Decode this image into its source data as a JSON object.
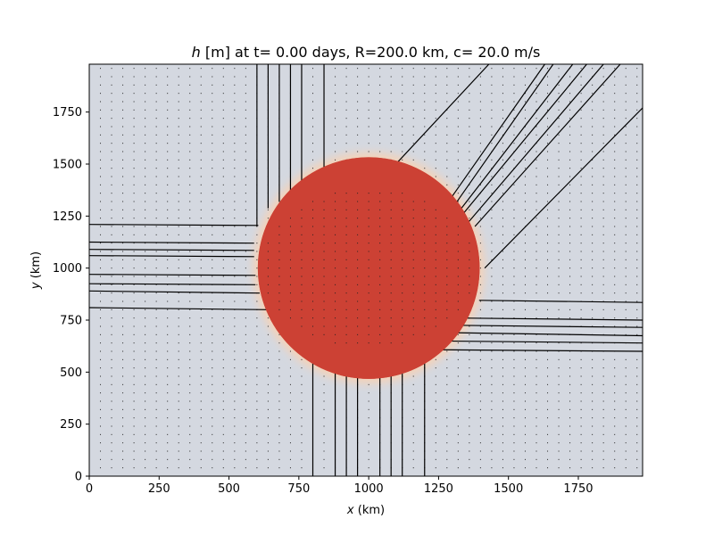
{
  "figure": {
    "title_var": "h",
    "title_rest": " [m] at t= 0.00 days, R=200.0 km, c= 20.0 m/s"
  },
  "chart_data": {
    "type": "heatmap",
    "xlabel_var": "x",
    "xlabel_unit": " (km)",
    "ylabel_var": "y",
    "ylabel_unit": " (km)",
    "xlim": [
      0,
      1980
    ],
    "ylim": [
      0,
      1980
    ],
    "x_ticks": [
      0,
      250,
      500,
      750,
      1000,
      1250,
      1500,
      1750
    ],
    "y_ticks": [
      0,
      250,
      500,
      750,
      1000,
      1250,
      1500,
      1750
    ],
    "grid": false,
    "legend": "none",
    "colors": {
      "background_field": "#d4d8e0",
      "anomaly_field": "#cc4134",
      "edge_glow": "#f6d2b6",
      "contours": "#000000",
      "dots": "#222222"
    },
    "field": {
      "background_value_label": "low",
      "anomaly": {
        "shape": "disk",
        "center": [
          1000,
          1000
        ],
        "radius_km": 400
      }
    },
    "dot_grid": {
      "spacing_km": 40,
      "start_km": 40
    },
    "contour_lines": {
      "vertical_top": [
        600,
        640,
        680,
        720,
        760,
        840
      ],
      "vertical_bottom": [
        800,
        880,
        920,
        960,
        1040,
        1080,
        1120,
        1200
      ],
      "horizontal_left": [
        [
          [
            0,
            1210
          ],
          [
            605,
            1205
          ]
        ],
        [
          [
            0,
            1125
          ],
          [
            590,
            1120
          ]
        ],
        [
          [
            0,
            1090
          ],
          [
            590,
            1085
          ]
        ],
        [
          [
            0,
            1060
          ],
          [
            590,
            1055
          ]
        ],
        [
          [
            0,
            970
          ],
          [
            595,
            965
          ]
        ],
        [
          [
            0,
            925
          ],
          [
            595,
            920
          ]
        ],
        [
          [
            0,
            890
          ],
          [
            610,
            880
          ]
        ],
        [
          [
            0,
            810
          ],
          [
            640,
            800
          ]
        ]
      ],
      "horizontal_right": [
        [
          [
            1395,
            845
          ],
          [
            1980,
            835
          ]
        ],
        [
          [
            1330,
            760
          ],
          [
            1980,
            750
          ]
        ],
        [
          [
            1310,
            725
          ],
          [
            1980,
            715
          ]
        ],
        [
          [
            1280,
            690
          ],
          [
            1980,
            675
          ]
        ],
        [
          [
            1230,
            650
          ],
          [
            1980,
            640
          ]
        ],
        [
          [
            1020,
            610
          ],
          [
            1980,
            600
          ]
        ]
      ],
      "diagonal": [
        [
          [
            1000,
            1360
          ],
          [
            1430,
            1980
          ]
        ],
        [
          [
            1270,
            1290
          ],
          [
            1630,
            1980
          ]
        ],
        [
          [
            1290,
            1270
          ],
          [
            1660,
            1980
          ]
        ],
        [
          [
            1310,
            1250
          ],
          [
            1730,
            1980
          ]
        ],
        [
          [
            1325,
            1240
          ],
          [
            1780,
            1980
          ]
        ],
        [
          [
            1350,
            1210
          ],
          [
            1840,
            1980
          ]
        ],
        [
          [
            1380,
            1200
          ],
          [
            1900,
            1980
          ]
        ],
        [
          [
            1415,
            1000
          ],
          [
            1980,
            1770
          ]
        ]
      ]
    }
  }
}
